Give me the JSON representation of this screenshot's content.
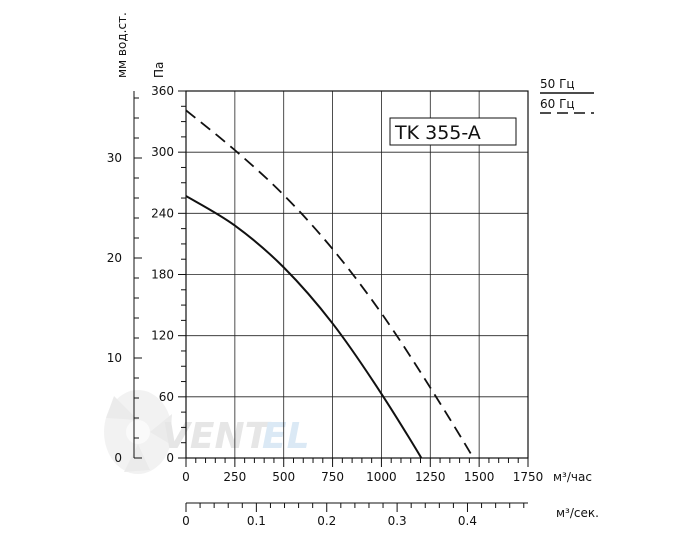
{
  "watermark": {
    "text_a": "VENT",
    "text_b": "EL",
    "icon": "fan-logo-icon"
  },
  "legend": [
    {
      "label": "50 Гц",
      "style": "solid"
    },
    {
      "label": "60 Гц",
      "style": "dashed"
    }
  ],
  "chart_data": {
    "type": "line",
    "title": "TK 355-A",
    "x_axis": {
      "unit": "м³/час",
      "range": [
        0,
        1750
      ],
      "ticks": [
        0,
        250,
        500,
        750,
        1000,
        1250,
        1500,
        1750
      ],
      "tick_labels": [
        "0",
        "250",
        "500",
        "750",
        "1000",
        "1250",
        "1500",
        "1750"
      ]
    },
    "x_axis_secondary": {
      "unit": "м³/сек.",
      "range": [
        0,
        0.486
      ],
      "ticks": [
        0,
        0.1,
        0.2,
        0.3,
        0.4
      ],
      "tick_labels": [
        "0",
        "0.1",
        "0.2",
        "0.3",
        "0.4"
      ]
    },
    "y_axis": {
      "unit": "Па",
      "range": [
        0,
        360
      ],
      "ticks": [
        0,
        60,
        120,
        180,
        240,
        300,
        360
      ],
      "tick_labels": [
        "0",
        "60",
        "120",
        "180",
        "240",
        "300",
        "360"
      ]
    },
    "y_axis_secondary": {
      "unit": "мм вод.ст.",
      "range": [
        0,
        36.7
      ],
      "ticks": [
        0,
        10,
        20,
        30
      ],
      "tick_labels": [
        "0",
        "10",
        "20",
        "30"
      ]
    },
    "grid": true,
    "series": [
      {
        "name": "50 Гц",
        "style": "solid",
        "x": [
          0,
          250,
          500,
          750,
          1000,
          1250,
          1290
        ],
        "y": [
          257,
          228,
          187,
          132,
          63,
          -15,
          -35
        ]
      },
      {
        "name": "60 Гц",
        "style": "dashed",
        "x": [
          0,
          250,
          500,
          750,
          1000,
          1250,
          1500,
          1540
        ],
        "y": [
          341,
          302,
          258,
          205,
          142,
          69,
          -10,
          -32
        ]
      }
    ]
  }
}
